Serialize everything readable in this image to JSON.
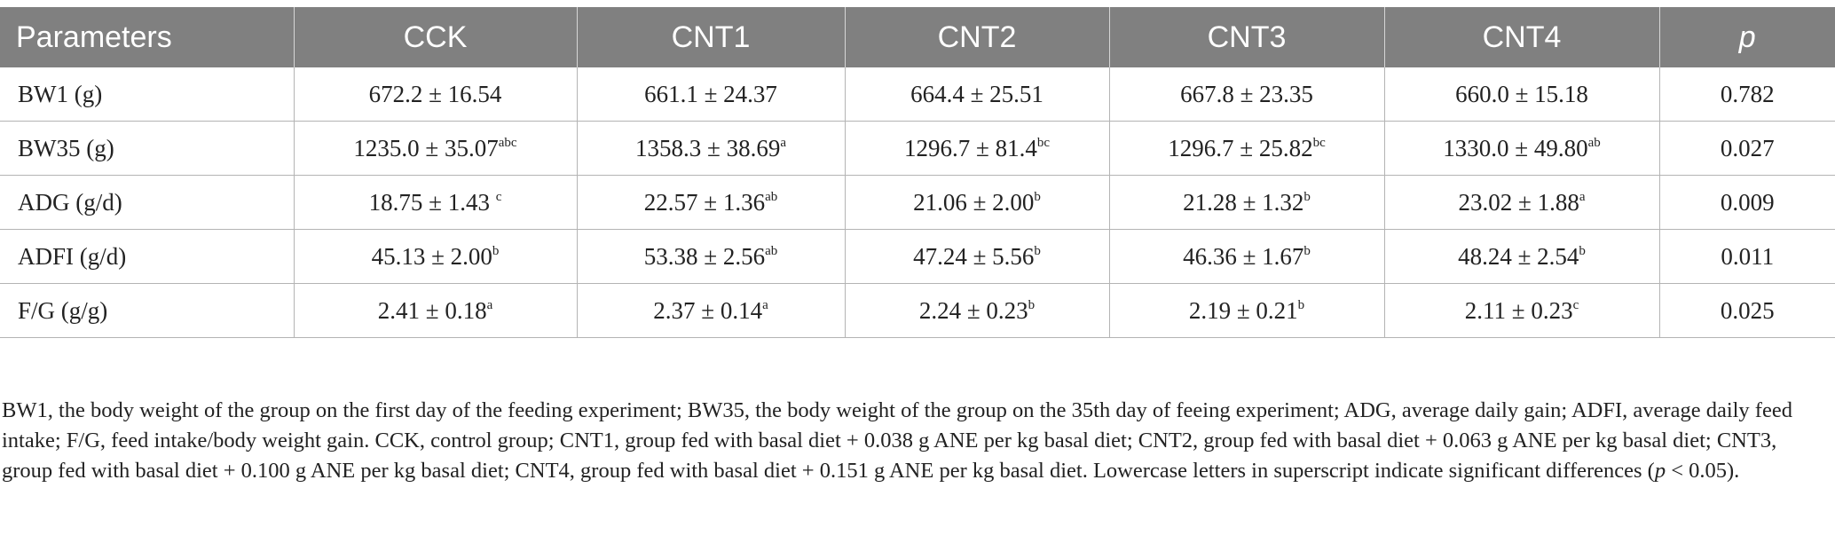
{
  "table": {
    "headers": [
      "Parameters",
      "CCK",
      "CNT1",
      "CNT2",
      "CNT3",
      "CNT4",
      "p"
    ],
    "rows": [
      {
        "param": "BW1 (g)",
        "cells": [
          {
            "v": "672.2 ± 16.54",
            "s": ""
          },
          {
            "v": "661.1 ± 24.37",
            "s": ""
          },
          {
            "v": "664.4 ± 25.51",
            "s": ""
          },
          {
            "v": "667.8 ± 23.35",
            "s": ""
          },
          {
            "v": "660.0 ± 15.18",
            "s": ""
          }
        ],
        "p": "0.782"
      },
      {
        "param": "BW35 (g)",
        "cells": [
          {
            "v": "1235.0 ± 35.07",
            "s": "abc"
          },
          {
            "v": "1358.3 ± 38.69",
            "s": "a"
          },
          {
            "v": "1296.7 ± 81.4",
            "s": "bc"
          },
          {
            "v": "1296.7 ± 25.82",
            "s": "bc"
          },
          {
            "v": "1330.0 ± 49.80",
            "s": "ab"
          }
        ],
        "p": "0.027"
      },
      {
        "param": "ADG (g/d)",
        "cells": [
          {
            "v": "18.75 ± 1.43 ",
            "s": "c"
          },
          {
            "v": "22.57 ± 1.36",
            "s": "ab"
          },
          {
            "v": "21.06 ± 2.00",
            "s": "b"
          },
          {
            "v": "21.28 ± 1.32",
            "s": "b"
          },
          {
            "v": "23.02 ± 1.88",
            "s": "a"
          }
        ],
        "p": "0.009"
      },
      {
        "param": "ADFI (g/d)",
        "cells": [
          {
            "v": "45.13 ± 2.00",
            "s": "b"
          },
          {
            "v": "53.38 ± 2.56",
            "s": "ab"
          },
          {
            "v": "47.24 ± 5.56",
            "s": "b"
          },
          {
            "v": "46.36 ± 1.67",
            "s": "b"
          },
          {
            "v": "48.24 ± 2.54",
            "s": "b"
          }
        ],
        "p": "0.011"
      },
      {
        "param": "F/G (g/g)",
        "cells": [
          {
            "v": "2.41 ± 0.18",
            "s": "a"
          },
          {
            "v": "2.37 ± 0.14",
            "s": "a"
          },
          {
            "v": "2.24 ± 0.23",
            "s": "b"
          },
          {
            "v": "2.19 ± 0.21",
            "s": "b"
          },
          {
            "v": "2.11 ± 0.23",
            "s": "c"
          }
        ],
        "p": "0.025"
      }
    ]
  },
  "footnote": {
    "text": "BW1, the body weight of the group on the first day of the feeding experiment; BW35, the body weight of the group on the 35th day of feeing experiment; ADG, average daily gain; ADFI, average daily feed intake; F/G, feed intake/body weight gain. CCK, control group; CNT1, group fed with basal diet + 0.038 g ANE per kg basal diet; CNT2, group fed with basal diet + 0.063 g ANE per kg basal diet; CNT3, group fed with basal diet + 0.100 g ANE per kg basal diet; CNT4, group fed with basal diet + 0.151 g ANE per kg basal diet. Lowercase letters in superscript indicate significant differences (",
    "p_symbol": "p",
    "text_end": " < 0.05)."
  },
  "colors": {
    "header_bg": "#808080",
    "header_text": "#ffffff",
    "grid": "#b4b4b4",
    "body_text": "#222222"
  }
}
